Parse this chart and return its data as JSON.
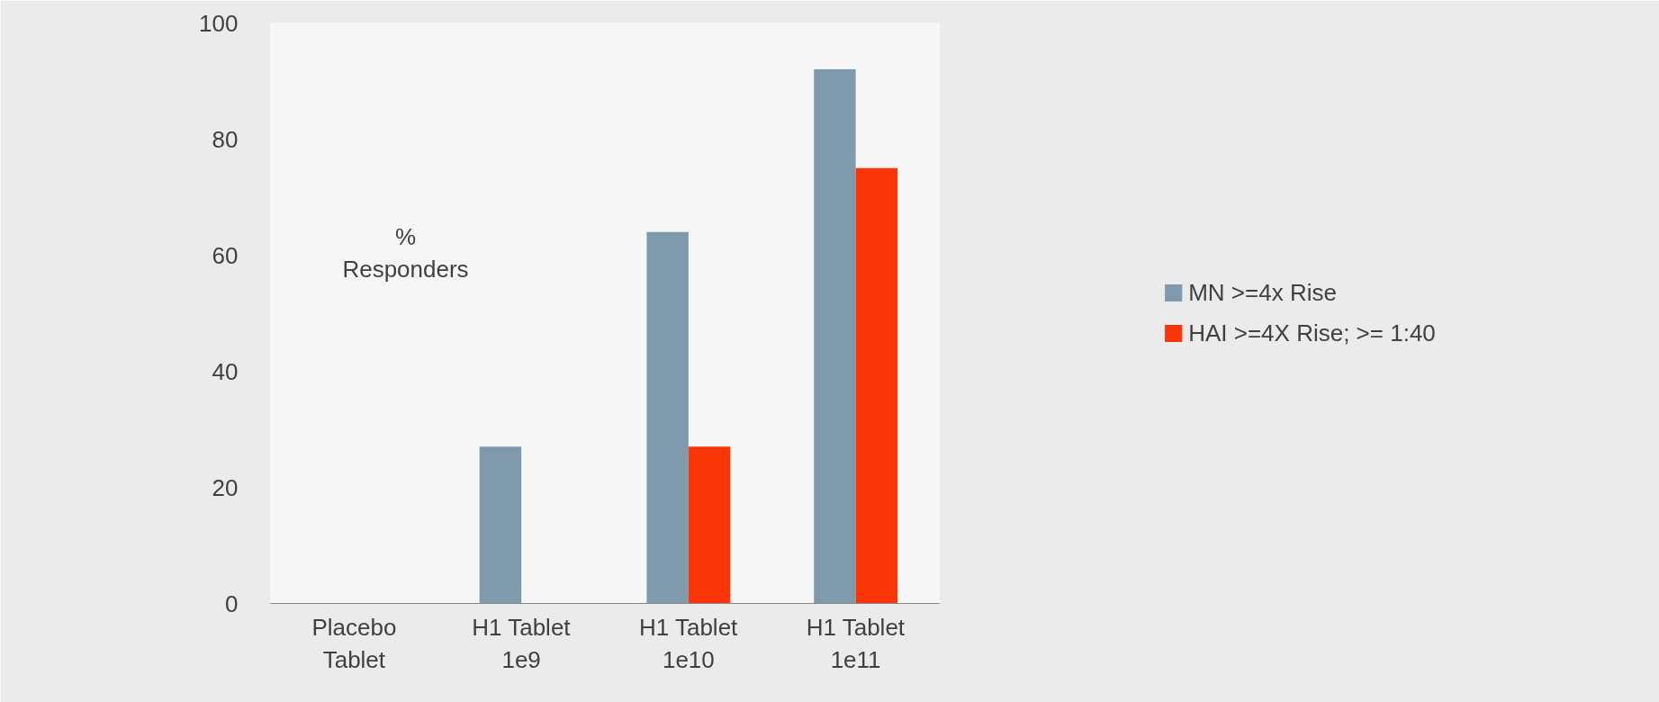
{
  "chart_data": {
    "type": "bar",
    "ylabel": "% Responders",
    "categories": [
      "Placebo Tablet",
      "H1 Tablet 1e9",
      "H1 Tablet 1e10",
      "H1 Tablet 1e11"
    ],
    "series": [
      {
        "name": "MN >=4x Rise",
        "color": "#7f9aad",
        "values": [
          0,
          27,
          64,
          92
        ]
      },
      {
        "name": "HAI >=4X Rise; >= 1:40",
        "color": "#fa3608",
        "values": [
          0,
          0,
          27,
          75
        ]
      }
    ],
    "ylim": [
      0,
      100
    ],
    "yticks": [
      0,
      20,
      40,
      60,
      80,
      100
    ],
    "grid": false,
    "legend": "right"
  }
}
